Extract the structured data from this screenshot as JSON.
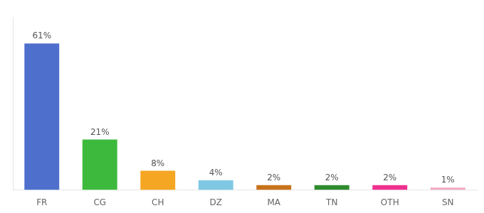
{
  "chart_data": {
    "type": "bar",
    "categories": [
      "FR",
      "CG",
      "CH",
      "DZ",
      "MA",
      "TN",
      "OTH",
      "SN"
    ],
    "values": [
      61,
      21,
      8,
      4,
      2,
      2,
      2,
      1
    ],
    "value_labels": [
      "61%",
      "21%",
      "8%",
      "4%",
      "2%",
      "2%",
      "2%",
      "1%"
    ],
    "data_labels": true,
    "colors": [
      "#4f6fcd",
      "#3dba3d",
      "#f5a623",
      "#7ec8e3",
      "#c8721a",
      "#2e8b2e",
      "#f03090",
      "#f4a8c0"
    ],
    "ylim": [
      0,
      72
    ],
    "grid": false,
    "tick_labels": "x"
  }
}
